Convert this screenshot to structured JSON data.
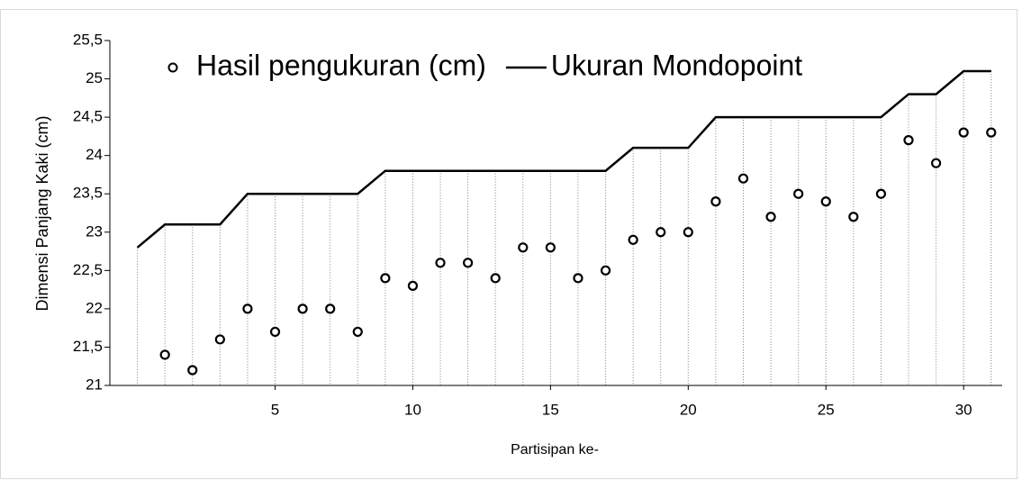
{
  "chart_data": {
    "type": "scatter-line",
    "xlabel": "Partisipan ke-",
    "ylabel": "Dimensi Panjang Kaki (cm)",
    "xlim": [
      -1,
      31.4
    ],
    "xticks": [
      5,
      10,
      15,
      20,
      25,
      30
    ],
    "ylim": [
      21,
      25.5
    ],
    "yticks": [
      21,
      {
        "value": 21.5,
        "label": "21,5"
      },
      22,
      {
        "value": 22.5,
        "label": "22,5"
      },
      23,
      {
        "value": 23.5,
        "label": "23,5"
      },
      24,
      {
        "value": 24.5,
        "label": "24,5"
      },
      25,
      {
        "value": 25.5,
        "label": "25,5"
      }
    ],
    "legend": "top",
    "series": [
      {
        "name": "Hasil pengukuran (cm)",
        "kind": "marker",
        "color": "#000000",
        "x": [
          1,
          2,
          3,
          4,
          5,
          6,
          7,
          8,
          9,
          10,
          11,
          12,
          13,
          14,
          15,
          16,
          17,
          18,
          19,
          20,
          21,
          22,
          23,
          24,
          25,
          26,
          27,
          28,
          29,
          30,
          31
        ],
        "values": [
          21.4,
          21.2,
          21.6,
          22.0,
          21.7,
          22.0,
          22.0,
          21.7,
          22.4,
          22.3,
          22.6,
          22.6,
          22.4,
          22.8,
          22.8,
          22.4,
          22.5,
          22.9,
          23.0,
          23.0,
          23.4,
          23.7,
          23.2,
          23.5,
          23.4,
          23.2,
          23.5,
          24.2,
          23.9,
          24.3,
          24.3
        ]
      },
      {
        "name": "Ukuran Mondopoint",
        "kind": "line",
        "color": "#000000",
        "x": [
          0,
          1,
          2,
          3,
          4,
          5,
          6,
          7,
          8,
          9,
          10,
          11,
          12,
          13,
          14,
          15,
          16,
          17,
          18,
          19,
          20,
          21,
          22,
          23,
          24,
          25,
          26,
          27,
          28,
          29,
          30,
          31
        ],
        "values": [
          22.8,
          23.1,
          23.1,
          23.1,
          23.5,
          23.5,
          23.5,
          23.5,
          23.5,
          23.8,
          23.8,
          23.8,
          23.8,
          23.8,
          23.8,
          23.8,
          23.8,
          23.8,
          24.1,
          24.1,
          24.1,
          24.5,
          24.5,
          24.5,
          24.5,
          24.5,
          24.5,
          24.5,
          24.8,
          24.8,
          25.1,
          25.1
        ]
      }
    ]
  }
}
